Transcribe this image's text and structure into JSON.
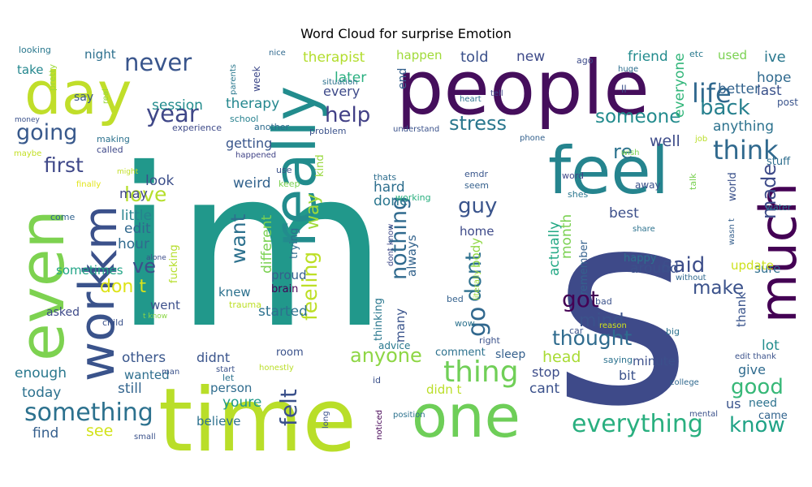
{
  "title": "Word Cloud for surprise Emotion",
  "words": [
    {
      "text": "im",
      "color": "#21988b"
    },
    {
      "text": "s",
      "color": "#3e4a89"
    },
    {
      "text": "people",
      "color": "#450e5c"
    },
    {
      "text": "time",
      "color": "#b9de29"
    },
    {
      "text": "feel",
      "color": "#25848e"
    },
    {
      "text": "even",
      "color": "#7dd250"
    },
    {
      "text": "really",
      "color": "#228c8d"
    },
    {
      "text": "work",
      "color": "#3a538b"
    },
    {
      "text": "one",
      "color": "#6ece58"
    },
    {
      "text": "much",
      "color": "#440154"
    },
    {
      "text": "day",
      "color": "#c0de2a"
    },
    {
      "text": "km",
      "color": "#3b518b"
    },
    {
      "text": "life",
      "color": "#31688e"
    },
    {
      "text": "thing",
      "color": "#70cf57"
    },
    {
      "text": "something",
      "color": "#2c718e"
    },
    {
      "text": "everything",
      "color": "#29af7f"
    },
    {
      "text": "think",
      "color": "#30698e"
    },
    {
      "text": "going",
      "color": "#38598c"
    },
    {
      "text": "never",
      "color": "#39558c"
    },
    {
      "text": "year",
      "color": "#3f4788"
    },
    {
      "text": "help",
      "color": "#424086"
    },
    {
      "text": "back",
      "color": "#27808e"
    },
    {
      "text": "someone",
      "color": "#228b8d"
    },
    {
      "text": "stress",
      "color": "#2a778e"
    },
    {
      "text": "said",
      "color": "#3d4e8a"
    },
    {
      "text": "made",
      "color": "#3e4b89"
    },
    {
      "text": "know",
      "color": "#20a386"
    },
    {
      "text": "good",
      "color": "#37b878"
    },
    {
      "text": "make",
      "color": "#3b528b"
    },
    {
      "text": "thought",
      "color": "#2f6b8e"
    },
    {
      "text": "got",
      "color": "#440154"
    },
    {
      "text": "mind",
      "color": "#3b528b"
    },
    {
      "text": "dont",
      "color": "#2d708e"
    },
    {
      "text": "guy",
      "color": "#3a548c"
    },
    {
      "text": "go",
      "color": "#31688e"
    },
    {
      "text": "first",
      "color": "#3f4889"
    },
    {
      "text": "love",
      "color": "#b5de2b"
    },
    {
      "text": "want",
      "color": "#2d718e"
    },
    {
      "text": "nothing",
      "color": "#306a8e"
    },
    {
      "text": "feeling",
      "color": "#bddf26"
    },
    {
      "text": "felt",
      "color": "#3b518b"
    },
    {
      "text": "anyone",
      "color": "#8ed645"
    },
    {
      "text": "way",
      "color": "#a0da39"
    },
    {
      "text": "re",
      "color": "#2c728e"
    },
    {
      "text": "well",
      "color": "#3e4c8a"
    },
    {
      "text": "ve",
      "color": "#3c4f8a"
    },
    {
      "text": "don t",
      "color": "#dde318"
    },
    {
      "text": "session",
      "color": "#228c8d"
    },
    {
      "text": "therapy",
      "color": "#24878e"
    },
    {
      "text": "therapist",
      "color": "#b2dd2d"
    },
    {
      "text": "told",
      "color": "#3b518b"
    },
    {
      "text": "new",
      "color": "#3e4a89"
    },
    {
      "text": "friend",
      "color": "#228b8d"
    },
    {
      "text": "ive",
      "color": "#2a788e"
    },
    {
      "text": "hope",
      "color": "#306a8e"
    },
    {
      "text": "last",
      "color": "#3b528b"
    },
    {
      "text": "better",
      "color": "#33638d"
    },
    {
      "text": "anything",
      "color": "#2c728e"
    },
    {
      "text": "everyone",
      "color": "#32b67a"
    },
    {
      "text": "later",
      "color": "#29af7f"
    },
    {
      "text": "every",
      "color": "#3e4a89"
    },
    {
      "text": "getting",
      "color": "#39568c"
    },
    {
      "text": "weird",
      "color": "#33638d"
    },
    {
      "text": "look",
      "color": "#3c4f8a"
    },
    {
      "text": "may",
      "color": "#404688"
    },
    {
      "text": "little",
      "color": "#26828e"
    },
    {
      "text": "edit",
      "color": "#31688e"
    },
    {
      "text": "hour",
      "color": "#306a8e"
    },
    {
      "text": "sometimes",
      "color": "#20a486"
    },
    {
      "text": "hard",
      "color": "#2e6f8e"
    },
    {
      "text": "done",
      "color": "#2a768e"
    },
    {
      "text": "always",
      "color": "#33638d"
    },
    {
      "text": "different",
      "color": "#7ad151"
    },
    {
      "text": "kind",
      "color": "#98d83e"
    },
    {
      "text": "trying",
      "color": "#2e6e8e"
    },
    {
      "text": "proud",
      "color": "#355f8d"
    },
    {
      "text": "brain",
      "color": "#440154"
    },
    {
      "text": "knew",
      "color": "#2c718e"
    },
    {
      "text": "went",
      "color": "#3c508b"
    },
    {
      "text": "started",
      "color": "#2d718e"
    },
    {
      "text": "asked",
      "color": "#3e4a89"
    },
    {
      "text": "others",
      "color": "#39568c"
    },
    {
      "text": "didnt",
      "color": "#3a548c"
    },
    {
      "text": "enough",
      "color": "#2a788e"
    },
    {
      "text": "wanted",
      "color": "#2e6e8e"
    },
    {
      "text": "still",
      "color": "#32648e"
    },
    {
      "text": "today",
      "color": "#2c718e"
    },
    {
      "text": "see",
      "color": "#d2e21b"
    },
    {
      "text": "find",
      "color": "#355f8d"
    },
    {
      "text": "believe",
      "color": "#2d718e"
    },
    {
      "text": "person",
      "color": "#2f6c8e"
    },
    {
      "text": "youre",
      "color": "#1f9a8a"
    },
    {
      "text": "cant",
      "color": "#3b518b"
    },
    {
      "text": "didn t",
      "color": "#bade28"
    },
    {
      "text": "stop",
      "color": "#3d4d8a"
    },
    {
      "text": "head",
      "color": "#a8db34"
    },
    {
      "text": "bit",
      "color": "#3b528b"
    },
    {
      "text": "give",
      "color": "#2f6b8e"
    },
    {
      "text": "minute",
      "color": "#3c508b"
    },
    {
      "text": "sleep",
      "color": "#35608d"
    },
    {
      "text": "us",
      "color": "#3a548c"
    },
    {
      "text": "need",
      "color": "#2c728e"
    },
    {
      "text": "came",
      "color": "#32648e"
    },
    {
      "text": "lot",
      "color": "#228d8d"
    },
    {
      "text": "thank",
      "color": "#3a548c"
    },
    {
      "text": "sure",
      "color": "#2e6e8e"
    },
    {
      "text": "update",
      "color": "#cde11d"
    },
    {
      "text": "around",
      "color": "#3b518b"
    },
    {
      "text": "happy",
      "color": "#2c728e"
    },
    {
      "text": "best",
      "color": "#3c4f8a"
    },
    {
      "text": "month",
      "color": "#7ad151"
    },
    {
      "text": "actually",
      "color": "#22a884"
    },
    {
      "text": "home",
      "color": "#3e4a89"
    },
    {
      "text": "body",
      "color": "#8fd744"
    },
    {
      "text": "remember",
      "color": "#34618d"
    },
    {
      "text": "comment",
      "color": "#2d718e"
    },
    {
      "text": "advice",
      "color": "#29788e"
    },
    {
      "text": "many",
      "color": "#3a548c"
    },
    {
      "text": "thinking",
      "color": "#2a778e"
    },
    {
      "text": "fucking",
      "color": "#b5de2b"
    },
    {
      "text": "take",
      "color": "#24878e"
    },
    {
      "text": "night",
      "color": "#2d708e"
    },
    {
      "text": "looking",
      "color": "#2a788e"
    },
    {
      "text": "say",
      "color": "#39568c"
    },
    {
      "text": "pretty",
      "color": "#9fda3a"
    },
    {
      "text": "money",
      "color": "#3b528b"
    },
    {
      "text": "making",
      "color": "#2c728e"
    },
    {
      "text": "called",
      "color": "#3f4889"
    },
    {
      "text": "experience",
      "color": "#3e4a89"
    },
    {
      "text": "school",
      "color": "#26818e"
    },
    {
      "text": "maybe",
      "color": "#c2df23"
    },
    {
      "text": "finally",
      "color": "#e1e418"
    },
    {
      "text": "might",
      "color": "#c2df23"
    },
    {
      "text": "come",
      "color": "#32648e"
    },
    {
      "text": "alone",
      "color": "#3d4d8a"
    },
    {
      "text": "child",
      "color": "#3b528b"
    },
    {
      "text": "t know",
      "color": "#8bd646"
    },
    {
      "text": "trauma",
      "color": "#bddf26"
    },
    {
      "text": "happened",
      "color": "#414487"
    },
    {
      "text": "another",
      "color": "#2f6c8e"
    },
    {
      "text": "week",
      "color": "#3e4989"
    },
    {
      "text": "parents",
      "color": "#2a788e"
    },
    {
      "text": "nice",
      "color": "#30698e"
    },
    {
      "text": "situation",
      "color": "#2d718e"
    },
    {
      "text": "happen",
      "color": "#a0da39"
    },
    {
      "text": "end",
      "color": "#35608d"
    },
    {
      "text": "heart",
      "color": "#2c728e"
    },
    {
      "text": "tell",
      "color": "#3f4889"
    },
    {
      "text": "problem",
      "color": "#3b528b"
    },
    {
      "text": "understand",
      "color": "#3b528b"
    },
    {
      "text": "phone",
      "color": "#34618d"
    },
    {
      "text": "wish",
      "color": "#7ad151"
    },
    {
      "text": "job",
      "color": "#bade28"
    },
    {
      "text": "huge",
      "color": "#2e6e8e"
    },
    {
      "text": "ago",
      "color": "#3e4c8a"
    },
    {
      "text": "ll",
      "color": "#3b528b"
    },
    {
      "text": "post",
      "color": "#3a548c"
    },
    {
      "text": "etc",
      "color": "#29798e"
    },
    {
      "text": "used",
      "color": "#7ad151"
    },
    {
      "text": "real",
      "color": "#98d83e"
    },
    {
      "text": "thats",
      "color": "#2e6e8e"
    },
    {
      "text": "working",
      "color": "#29af7f"
    },
    {
      "text": "emdr",
      "color": "#39568c"
    },
    {
      "text": "seem",
      "color": "#35608d"
    },
    {
      "text": "word",
      "color": "#3f4788"
    },
    {
      "text": "shes",
      "color": "#2a768e"
    },
    {
      "text": "away",
      "color": "#3b528b"
    },
    {
      "text": "stuff",
      "color": "#2e6e8e"
    },
    {
      "text": "water",
      "color": "#2a778e"
    },
    {
      "text": "talk",
      "color": "#7ad151"
    },
    {
      "text": "world",
      "color": "#3b528b"
    },
    {
      "text": "wasn t",
      "color": "#355f8d"
    },
    {
      "text": "share",
      "color": "#2c728e"
    },
    {
      "text": "without",
      "color": "#30698e"
    },
    {
      "text": "bad",
      "color": "#3b528b"
    },
    {
      "text": "reason",
      "color": "#d2e21b"
    },
    {
      "text": "car",
      "color": "#3b528b"
    },
    {
      "text": "big",
      "color": "#2c728e"
    },
    {
      "text": "saying",
      "color": "#2c728e"
    },
    {
      "text": "edit thank",
      "color": "#3b528b"
    },
    {
      "text": "college",
      "color": "#30698e"
    },
    {
      "text": "mental",
      "color": "#3b528b"
    },
    {
      "text": "wow",
      "color": "#2c728e"
    },
    {
      "text": "right",
      "color": "#3b528b"
    },
    {
      "text": "literally",
      "color": "#9fda3a"
    },
    {
      "text": "bed",
      "color": "#34618d"
    },
    {
      "text": "dont know",
      "color": "#3e4a89"
    },
    {
      "text": "use",
      "color": "#3b528b"
    },
    {
      "text": "keep",
      "color": "#7ad151"
    },
    {
      "text": "room",
      "color": "#3b528b"
    },
    {
      "text": "honestly",
      "color": "#bade28"
    },
    {
      "text": "start",
      "color": "#3b528b"
    },
    {
      "text": "let",
      "color": "#2c728e"
    },
    {
      "text": "id",
      "color": "#3b528b"
    },
    {
      "text": "man",
      "color": "#3b528b"
    },
    {
      "text": "long",
      "color": "#3b528b"
    },
    {
      "text": "noticed",
      "color": "#440154"
    },
    {
      "text": "position",
      "color": "#2c728e"
    },
    {
      "text": "small",
      "color": "#3b528b"
    }
  ]
}
